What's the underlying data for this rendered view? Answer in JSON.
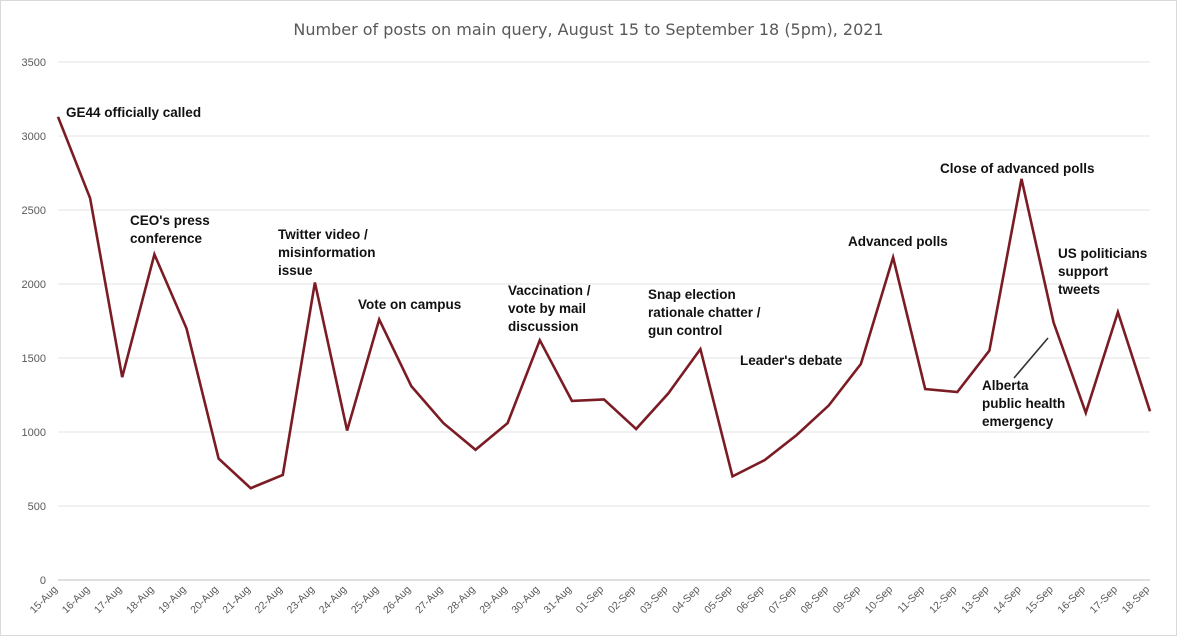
{
  "chart_data": {
    "type": "line",
    "title": "Number of posts on main query, August 15 to September 18 (5pm), 2021",
    "xlabel": "",
    "ylabel": "",
    "ylim": [
      0,
      3500
    ],
    "yticks": [
      0,
      500,
      1000,
      1500,
      2000,
      2500,
      3000,
      3500
    ],
    "grid": true,
    "line_color": "#7b1c24",
    "categories": [
      "15-Aug",
      "16-Aug",
      "17-Aug",
      "18-Aug",
      "19-Aug",
      "20-Aug",
      "21-Aug",
      "22-Aug",
      "23-Aug",
      "24-Aug",
      "25-Aug",
      "26-Aug",
      "27-Aug",
      "28-Aug",
      "29-Aug",
      "30-Aug",
      "31-Aug",
      "01-Sep",
      "02-Sep",
      "03-Sep",
      "04-Sep",
      "05-Sep",
      "06-Sep",
      "07-Sep",
      "08-Sep",
      "09-Sep",
      "10-Sep",
      "11-Sep",
      "12-Sep",
      "13-Sep",
      "14-Sep",
      "15-Sep",
      "16-Sep",
      "17-Sep",
      "18-Sep"
    ],
    "series": [
      {
        "values": [
          3130,
          2580,
          1370,
          2200,
          1700,
          820,
          620,
          710,
          2010,
          1010,
          1760,
          1310,
          1060,
          880,
          1060,
          1620,
          1210,
          1220,
          1020,
          1260,
          1560,
          700,
          810,
          980,
          1180,
          1460,
          2180,
          1290,
          1270,
          1550,
          2710,
          1740,
          1130,
          1810,
          1140
        ]
      }
    ],
    "annotations": [
      {
        "id": "ge44",
        "lines": [
          "GE44 officially called"
        ]
      },
      {
        "id": "ceo",
        "lines": [
          "CEO's press",
          "conference"
        ]
      },
      {
        "id": "twitter",
        "lines": [
          "Twitter video /",
          "misinformation",
          "issue"
        ]
      },
      {
        "id": "campus",
        "lines": [
          "Vote on campus"
        ]
      },
      {
        "id": "vaccination",
        "lines": [
          "Vaccination /",
          "vote by mail",
          "discussion"
        ]
      },
      {
        "id": "snap",
        "lines": [
          "Snap election",
          "rationale chatter /",
          "gun control"
        ]
      },
      {
        "id": "debate",
        "lines": [
          "Leader's debate"
        ]
      },
      {
        "id": "advpolls",
        "lines": [
          "Advanced polls"
        ]
      },
      {
        "id": "closepolls",
        "lines": [
          "Close of advanced polls"
        ]
      },
      {
        "id": "alberta",
        "lines": [
          "Alberta",
          "public health",
          "emergency"
        ]
      },
      {
        "id": "uspol",
        "lines": [
          "US politicians",
          "support",
          "tweets"
        ]
      }
    ]
  }
}
